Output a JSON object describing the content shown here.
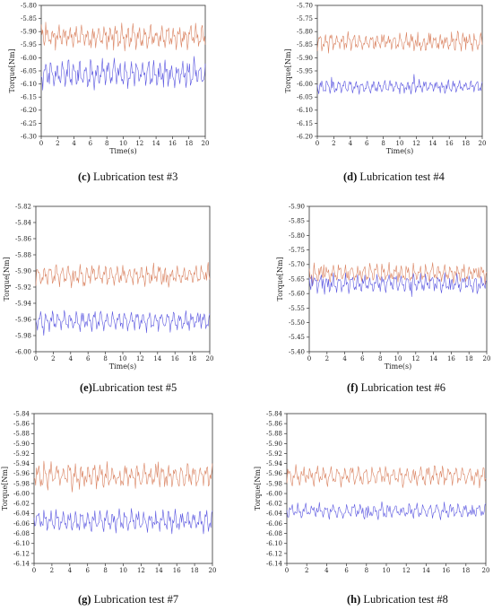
{
  "colors": {
    "series_a": "#d9805e",
    "series_b": "#5a56e0"
  },
  "chart_data": [
    {
      "id": "c",
      "type": "line",
      "caption_letter": "(c)",
      "caption_text": " Lubrication test #3",
      "xlabel": "Time(s)",
      "ylabel": "Torque[Nm]",
      "xlim": [
        0,
        20
      ],
      "xticks": [
        "0",
        "2",
        "4",
        "6",
        "8",
        "10",
        "12",
        "14",
        "16",
        "18",
        "20"
      ],
      "ylim": [
        -6.3,
        -5.8
      ],
      "yticks": [
        "-5.80",
        "-5.85",
        "-5.90",
        "-5.95",
        "-6.00",
        "-6.05",
        "-6.10",
        "-6.15",
        "-6.20",
        "-6.25",
        "-6.30"
      ],
      "series": [
        {
          "mean": -5.92,
          "amp": 0.045,
          "seed": 3,
          "noise": 0.3
        },
        {
          "mean": -6.06,
          "amp": 0.05,
          "seed": 7,
          "noise": 0.35
        }
      ]
    },
    {
      "id": "d",
      "type": "line",
      "caption_letter": "(d)",
      "caption_text": " Lubrication test #4",
      "xlabel": "Time(s)",
      "ylabel": "Torque[Nm]",
      "xlim": [
        0,
        20
      ],
      "xticks": [
        "0",
        "2",
        "4",
        "6",
        "8",
        "10",
        "12",
        "14",
        "16",
        "18",
        "20"
      ],
      "ylim": [
        -6.2,
        -5.7
      ],
      "yticks": [
        "-5.70",
        "-5.75",
        "-5.80",
        "-5.85",
        "-5.90",
        "-5.95",
        "-6.00",
        "-6.05",
        "-6.10",
        "-6.15",
        "-6.20"
      ],
      "series": [
        {
          "mean": -5.84,
          "amp": 0.035,
          "seed": 11,
          "noise": 0.3
        },
        {
          "mean": -6.01,
          "amp": 0.025,
          "seed": 13,
          "noise": 0.3
        }
      ]
    },
    {
      "id": "e",
      "type": "line",
      "caption_letter": "(e)",
      "caption_text": "Lubrication test #5",
      "xlabel": "Time(s)",
      "ylabel": "Torque[Nm]",
      "xlim": [
        0,
        20
      ],
      "xticks": [
        "0",
        "2",
        "4",
        "6",
        "8",
        "10",
        "12",
        "14",
        "16",
        "18",
        "20"
      ],
      "ylim": [
        -6.01,
        -5.82
      ],
      "yticks": [
        "-5.82",
        "-5.84",
        "-5.86",
        "-5.88",
        "-5.90",
        "-5.92",
        "-5.94",
        "-5.96",
        "-5.98",
        "-6.00"
      ],
      "series": [
        {
          "mean": -5.905,
          "amp": 0.012,
          "seed": 17,
          "noise": 0.35
        },
        {
          "mean": -5.962,
          "amp": 0.012,
          "seed": 19,
          "noise": 0.25
        }
      ]
    },
    {
      "id": "f",
      "type": "line",
      "caption_letter": "(f)",
      "caption_text": " Lubrication test #6",
      "xlabel": "Time(s)",
      "ylabel": "Torque[Nm]",
      "xlim": [
        0,
        20
      ],
      "xticks": [
        "0",
        "2",
        "4",
        "6",
        "8",
        "10",
        "12",
        "14",
        "16",
        "18",
        "20"
      ],
      "ylim": [
        -5.9,
        -5.4
      ],
      "yticks": [
        "-5.90",
        "-5.85",
        "-5.80",
        "-5.75",
        "-5.70",
        "-5.65",
        "-5.60",
        "-5.55",
        "-5.50",
        "-5.45",
        "-5.40"
      ],
      "series": [
        {
          "mean": -5.67,
          "amp": 0.03,
          "seed": 23,
          "noise": 0.35
        },
        {
          "mean": -5.635,
          "amp": 0.03,
          "seed": 29,
          "noise": 0.35
        }
      ]
    },
    {
      "id": "g",
      "type": "line",
      "caption_letter": "(g)",
      "caption_text": " Lubrication test #7",
      "xlabel": "",
      "ylabel": "Torque[Nm]",
      "xlim": [
        0,
        20
      ],
      "xticks": [
        "0",
        "2",
        "4",
        "6",
        "8",
        "10",
        "12",
        "14",
        "16",
        "18",
        "20"
      ],
      "ylim": [
        -6.14,
        -5.84
      ],
      "yticks": [
        "-5.84",
        "-5.86",
        "-5.88",
        "-5.90",
        "-5.92",
        "-5.94",
        "-5.96",
        "-5.98",
        "-6.00",
        "-6.02",
        "-6.04",
        "-6.06",
        "-6.08",
        "-6.10",
        "-6.12",
        "-6.14"
      ],
      "series": [
        {
          "mean": -5.965,
          "amp": 0.025,
          "seed": 31,
          "noise": 0.35
        },
        {
          "mean": -6.055,
          "amp": 0.02,
          "seed": 37,
          "noise": 0.35
        }
      ]
    },
    {
      "id": "h",
      "type": "line",
      "caption_letter": "(h)",
      "caption_text": " Lubrication test #8",
      "xlabel": "",
      "ylabel": "Torque[Nm]",
      "xlim": [
        0,
        20
      ],
      "xticks": [
        "0",
        "2",
        "4",
        "6",
        "8",
        "10",
        "12",
        "14",
        "16",
        "18",
        "20"
      ],
      "ylim": [
        -6.14,
        -5.84
      ],
      "yticks": [
        "-5.84",
        "-5.86",
        "-5.88",
        "-5.90",
        "-5.92",
        "-5.94",
        "-5.96",
        "-5.98",
        "-6.00",
        "-6.02",
        "-6.04",
        "-6.06",
        "-6.08",
        "-6.10",
        "-6.12",
        "-6.14"
      ],
      "series": [
        {
          "mean": -5.965,
          "amp": 0.02,
          "seed": 41,
          "noise": 0.3
        },
        {
          "mean": -6.035,
          "amp": 0.015,
          "seed": 43,
          "noise": 0.3
        }
      ]
    }
  ]
}
